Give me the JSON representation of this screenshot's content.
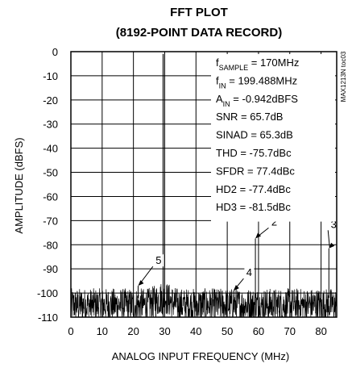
{
  "chart_data": {
    "type": "line",
    "title_lines": [
      "FFT PLOT",
      "(8192-POINT DATA RECORD)"
    ],
    "xlabel": "ANALOG INPUT FREQUENCY (MHz)",
    "ylabel": "AMPLITUDE (dBFS)",
    "xlim": [
      0,
      85
    ],
    "ylim": [
      -110,
      0
    ],
    "xticks": [
      0,
      10,
      20,
      30,
      40,
      50,
      60,
      70,
      80
    ],
    "yticks": [
      0,
      -10,
      -20,
      -30,
      -40,
      -50,
      -60,
      -70,
      -80,
      -90,
      -100,
      -110
    ],
    "grid": true,
    "side_label": "MAX1213N toc03",
    "annotations": [
      {
        "main": "f",
        "sub": "SAMPLE",
        "rest": " = 170MHz"
      },
      {
        "main": "f",
        "sub": "IN",
        "rest": " = 199.488MHz"
      },
      {
        "main": "A",
        "sub": "IN",
        "rest": " = -0.942dBFS"
      },
      {
        "main": "SNR = 65.7dB",
        "sub": "",
        "rest": ""
      },
      {
        "main": "SINAD = 65.3dB",
        "sub": "",
        "rest": ""
      },
      {
        "main": "THD = -75.7dBc",
        "sub": "",
        "rest": ""
      },
      {
        "main": "SFDR = 77.4dBc",
        "sub": "",
        "rest": ""
      },
      {
        "main": "HD2 = -77.4dBc",
        "sub": "",
        "rest": ""
      },
      {
        "main": "HD3 = -81.5dBc",
        "sub": "",
        "rest": ""
      }
    ],
    "fundamental": {
      "x": 29.5,
      "y": -0.9
    },
    "spurs": [
      {
        "label": "2",
        "x": 59.0,
        "y": -77.4,
        "label_x": 64,
        "label_y": -72
      },
      {
        "label": "3",
        "x": 82.5,
        "y": -81.5,
        "label_x": 83,
        "label_y": -73
      },
      {
        "label": "4",
        "x": 52.0,
        "y": -99,
        "label_x": 56,
        "label_y": -93
      },
      {
        "label": "5",
        "x": 21.5,
        "y": -97,
        "label_x": 27,
        "label_y": -88
      }
    ],
    "noise_floor": {
      "mean": -105,
      "spread": 7
    }
  }
}
